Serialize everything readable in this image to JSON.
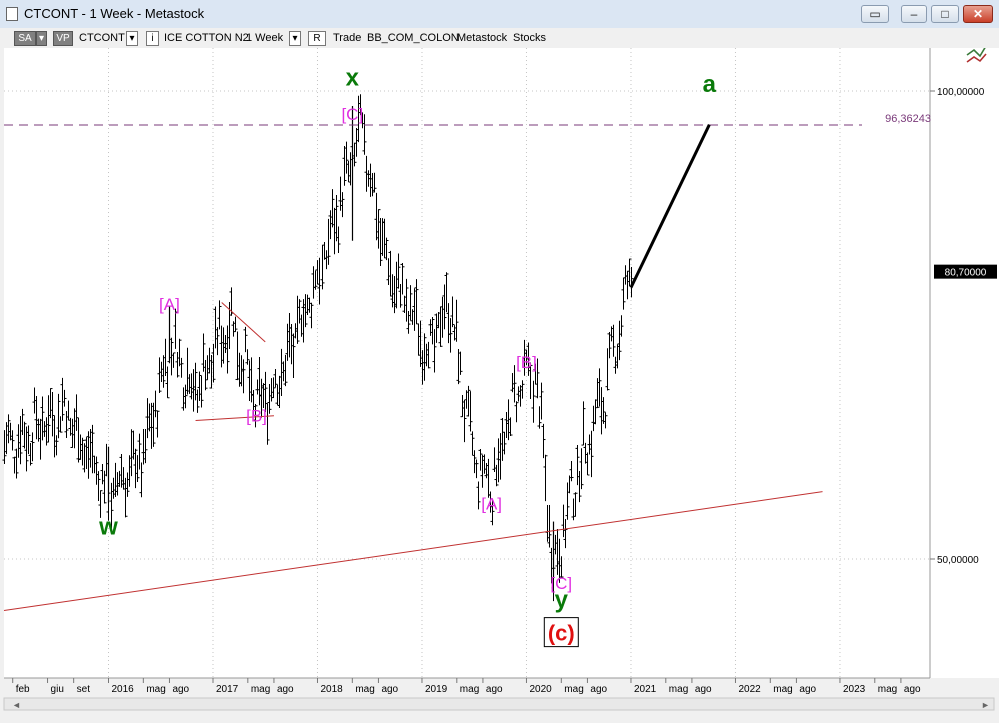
{
  "window": {
    "title": "CTCONT - 1 Week - Metastock",
    "controls": [
      "minimize",
      "maximize",
      "close"
    ]
  },
  "toolbar": {
    "sa_label": "SA",
    "vp_label": "VP",
    "symbol": "CTCONT",
    "name": "ICE COTTON N2",
    "period": "1 Week",
    "r_label": "R",
    "trade_label": "Trade",
    "source": "BB_COM_COLON",
    "vendor": "Metastock",
    "type": "Stocks"
  },
  "chart_data": {
    "type": "bar",
    "subtype": "ohlc",
    "title": "",
    "x_ticks": [
      "feb",
      "giu",
      "set",
      "2016",
      "mag",
      "ago",
      "2017",
      "mag",
      "ago",
      "2018",
      "mag",
      "ago",
      "2019",
      "mag",
      "ago",
      "2020",
      "mag",
      "ago",
      "2021",
      "mag",
      "ago",
      "2022",
      "mag",
      "ago",
      "2023",
      "mag",
      "ago"
    ],
    "y_ticks": [
      {
        "value": 100,
        "label": "100,00000"
      },
      {
        "value": 50,
        "label": "50,00000"
      }
    ],
    "y_range": [
      38,
      107
    ],
    "last_price": {
      "value": 80.7,
      "label": "80,70000"
    },
    "resistance": {
      "value": 96.36243,
      "label": "96,36243"
    },
    "grid": true,
    "anchors": [
      {
        "date": "2015-01",
        "price": 62
      },
      {
        "date": "2015-08",
        "price": 66
      },
      {
        "date": "2016-01",
        "price": 57
      },
      {
        "date": "2016-05",
        "price": 61
      },
      {
        "date": "2016-08",
        "price": 73
      },
      {
        "date": "2016-11",
        "price": 68
      },
      {
        "date": "2017-03",
        "price": 76
      },
      {
        "date": "2017-06",
        "price": 66
      },
      {
        "date": "2017-09",
        "price": 70
      },
      {
        "date": "2018-01",
        "price": 80
      },
      {
        "date": "2018-06",
        "price": 96
      },
      {
        "date": "2018-09",
        "price": 81
      },
      {
        "date": "2019-02",
        "price": 72
      },
      {
        "date": "2019-04",
        "price": 78
      },
      {
        "date": "2019-07",
        "price": 60
      },
      {
        "date": "2019-09",
        "price": 58
      },
      {
        "date": "2019-12",
        "price": 68
      },
      {
        "date": "2020-02",
        "price": 70
      },
      {
        "date": "2020-04",
        "price": 49
      },
      {
        "date": "2020-07",
        "price": 60
      },
      {
        "date": "2020-10",
        "price": 68
      },
      {
        "date": "2021-01",
        "price": 80.7
      }
    ],
    "annotations": [
      {
        "text": "w",
        "date": "2016-01",
        "price": 52.6,
        "style": "green"
      },
      {
        "text": "[A]",
        "date": "2016-08",
        "price": 76.6,
        "style": "magenta"
      },
      {
        "text": "[B]",
        "date": "2017-06",
        "price": 64.7,
        "style": "magenta"
      },
      {
        "text": "x",
        "date": "2018-05",
        "price": 100.6,
        "style": "green"
      },
      {
        "text": "[C]",
        "date": "2018-05",
        "price": 96.9,
        "style": "magenta"
      },
      {
        "text": "[B]",
        "date": "2020-01",
        "price": 70.4,
        "style": "magenta"
      },
      {
        "text": "[A]",
        "date": "2019-09",
        "price": 55.3,
        "style": "magenta"
      },
      {
        "text": "[C]",
        "date": "2020-05",
        "price": 46.8,
        "style": "magenta"
      },
      {
        "text": "y",
        "date": "2020-05",
        "price": 44.8,
        "style": "green"
      },
      {
        "text": "(c)",
        "date": "2020-05",
        "price": 41.6,
        "style": "red-boxed"
      },
      {
        "text": "a",
        "date": "2021-10",
        "price": 99.9,
        "style": "green"
      }
    ],
    "trendlines": [
      {
        "from": {
          "date": "2015-01",
          "price": 44.5
        },
        "to": {
          "date": "2022-11",
          "price": 57.2
        },
        "color": "#c03030"
      },
      {
        "from": {
          "date": "2016-11",
          "price": 64.8
        },
        "to": {
          "date": "2017-08",
          "price": 65.3
        },
        "color": "#c03030"
      },
      {
        "from": {
          "date": "2017-02",
          "price": 77.4
        },
        "to": {
          "date": "2017-07",
          "price": 73.2
        },
        "color": "#c03030"
      },
      {
        "from": {
          "date": "2021-01",
          "price": 79.0
        },
        "to": {
          "date": "2021-10",
          "price": 96.4
        },
        "color": "#000000"
      }
    ]
  }
}
